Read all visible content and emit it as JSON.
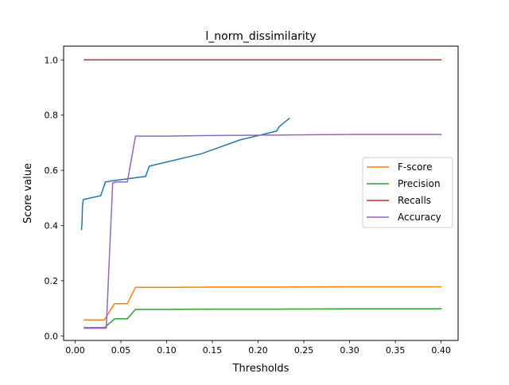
{
  "chart_data": {
    "type": "line",
    "title": "l_norm_dissimilarity",
    "xlabel": "Thresholds",
    "ylabel": "Score value",
    "xlim": [
      -0.0126,
      0.4186
    ],
    "ylim": [
      -0.0165,
      1.05
    ],
    "xticks": [
      0.0,
      0.05,
      0.1,
      0.15,
      0.2,
      0.25,
      0.3,
      0.35,
      0.4
    ],
    "xtick_labels": [
      "0.00",
      "0.05",
      "0.10",
      "0.15",
      "0.20",
      "0.25",
      "0.30",
      "0.35",
      "0.40"
    ],
    "yticks": [
      0.0,
      0.2,
      0.4,
      0.6,
      0.8,
      1.0
    ],
    "ytick_labels": [
      "0.0",
      "0.2",
      "0.4",
      "0.6",
      "0.8",
      "1.0"
    ],
    "grid": false,
    "legend": {
      "position": "center-right",
      "entries": [
        "F-score",
        "Precision",
        "Recalls",
        "Accuracy"
      ]
    },
    "series": [
      {
        "id": "unlabeled",
        "color": "#1f77b4",
        "in_legend": false,
        "x": [
          0.007,
          0.0075,
          0.008,
          0.0085,
          0.009,
          0.028,
          0.033,
          0.041,
          0.077,
          0.081,
          0.138,
          0.18,
          0.22,
          0.223,
          0.234
        ],
        "y": [
          0.386,
          0.41,
          0.47,
          0.485,
          0.494,
          0.508,
          0.558,
          0.562,
          0.578,
          0.615,
          0.66,
          0.71,
          0.742,
          0.758,
          0.788
        ]
      },
      {
        "name": "F-score",
        "color": "#ff7f0e",
        "in_legend": true,
        "x": [
          0.01,
          0.032,
          0.043,
          0.057,
          0.066,
          0.1,
          0.15,
          0.22,
          0.3,
          0.4
        ],
        "y": [
          0.058,
          0.058,
          0.117,
          0.117,
          0.176,
          0.176,
          0.177,
          0.177,
          0.178,
          0.178
        ]
      },
      {
        "name": "Precision",
        "color": "#2ca02c",
        "in_legend": true,
        "x": [
          0.01,
          0.032,
          0.043,
          0.057,
          0.066,
          0.1,
          0.15,
          0.22,
          0.3,
          0.4
        ],
        "y": [
          0.03,
          0.03,
          0.062,
          0.062,
          0.096,
          0.096,
          0.097,
          0.097,
          0.098,
          0.098
        ]
      },
      {
        "name": "Recalls",
        "color": "#d62728",
        "in_legend": true,
        "x": [
          0.01,
          0.4
        ],
        "y": [
          1.0,
          1.0
        ]
      },
      {
        "name": "Accuracy",
        "color": "#9467bd",
        "in_legend": true,
        "x": [
          0.01,
          0.034,
          0.041,
          0.046,
          0.057,
          0.066,
          0.1,
          0.15,
          0.22,
          0.3,
          0.4
        ],
        "y": [
          0.028,
          0.028,
          0.555,
          0.558,
          0.558,
          0.724,
          0.724,
          0.726,
          0.728,
          0.73,
          0.73
        ]
      }
    ]
  }
}
